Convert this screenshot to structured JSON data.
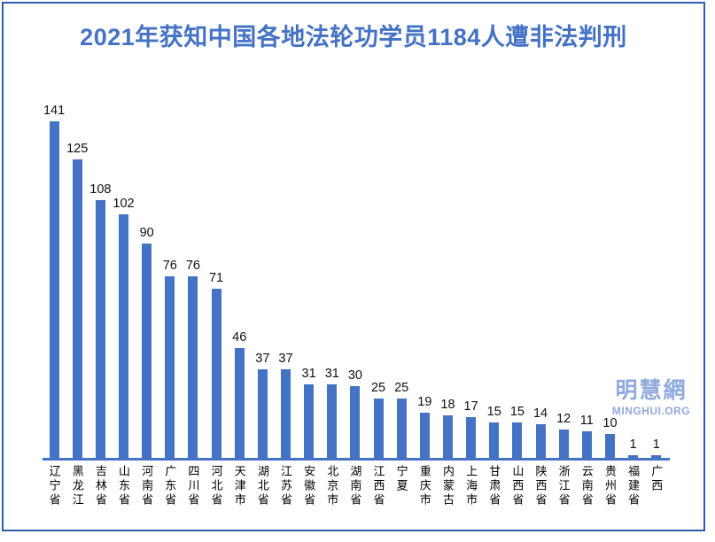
{
  "page": {
    "background_color": "#ffffff",
    "border_color": "#2e5ca8"
  },
  "chart_data": {
    "type": "bar",
    "title": "2021年获知中国各地法轮功学员1184人遭非法判刑",
    "title_color": "#4472c4",
    "bar_color": "#4472c4",
    "axis_color": "#4472c4",
    "value_label_color": "#111111",
    "categories": [
      "辽宁省",
      "黑龙江",
      "吉林省",
      "山东省",
      "河南省",
      "广东省",
      "四川省",
      "河北省",
      "天津市",
      "湖北省",
      "江苏省",
      "安徽省",
      "北京市",
      "湖南省",
      "江西省",
      "宁夏",
      "重庆市",
      "内蒙古",
      "上海市",
      "甘肃省",
      "山西省",
      "陕西省",
      "浙江省",
      "云南省",
      "贵州省",
      "福建省",
      "广西"
    ],
    "values": [
      141,
      125,
      108,
      102,
      90,
      76,
      76,
      71,
      46,
      37,
      37,
      31,
      31,
      30,
      25,
      25,
      19,
      18,
      17,
      15,
      15,
      14,
      12,
      11,
      10,
      1,
      1
    ],
    "total": 1184,
    "ylim": [
      0,
      141
    ],
    "y_axis_shown": false,
    "gridlines": false,
    "legend_position": "none",
    "data_labels_shown": true,
    "x_label_orientation": "vertical-stacked"
  },
  "watermark": {
    "logo": "明慧網",
    "url": "MINGHUI.ORG",
    "color": "#8faadc"
  }
}
